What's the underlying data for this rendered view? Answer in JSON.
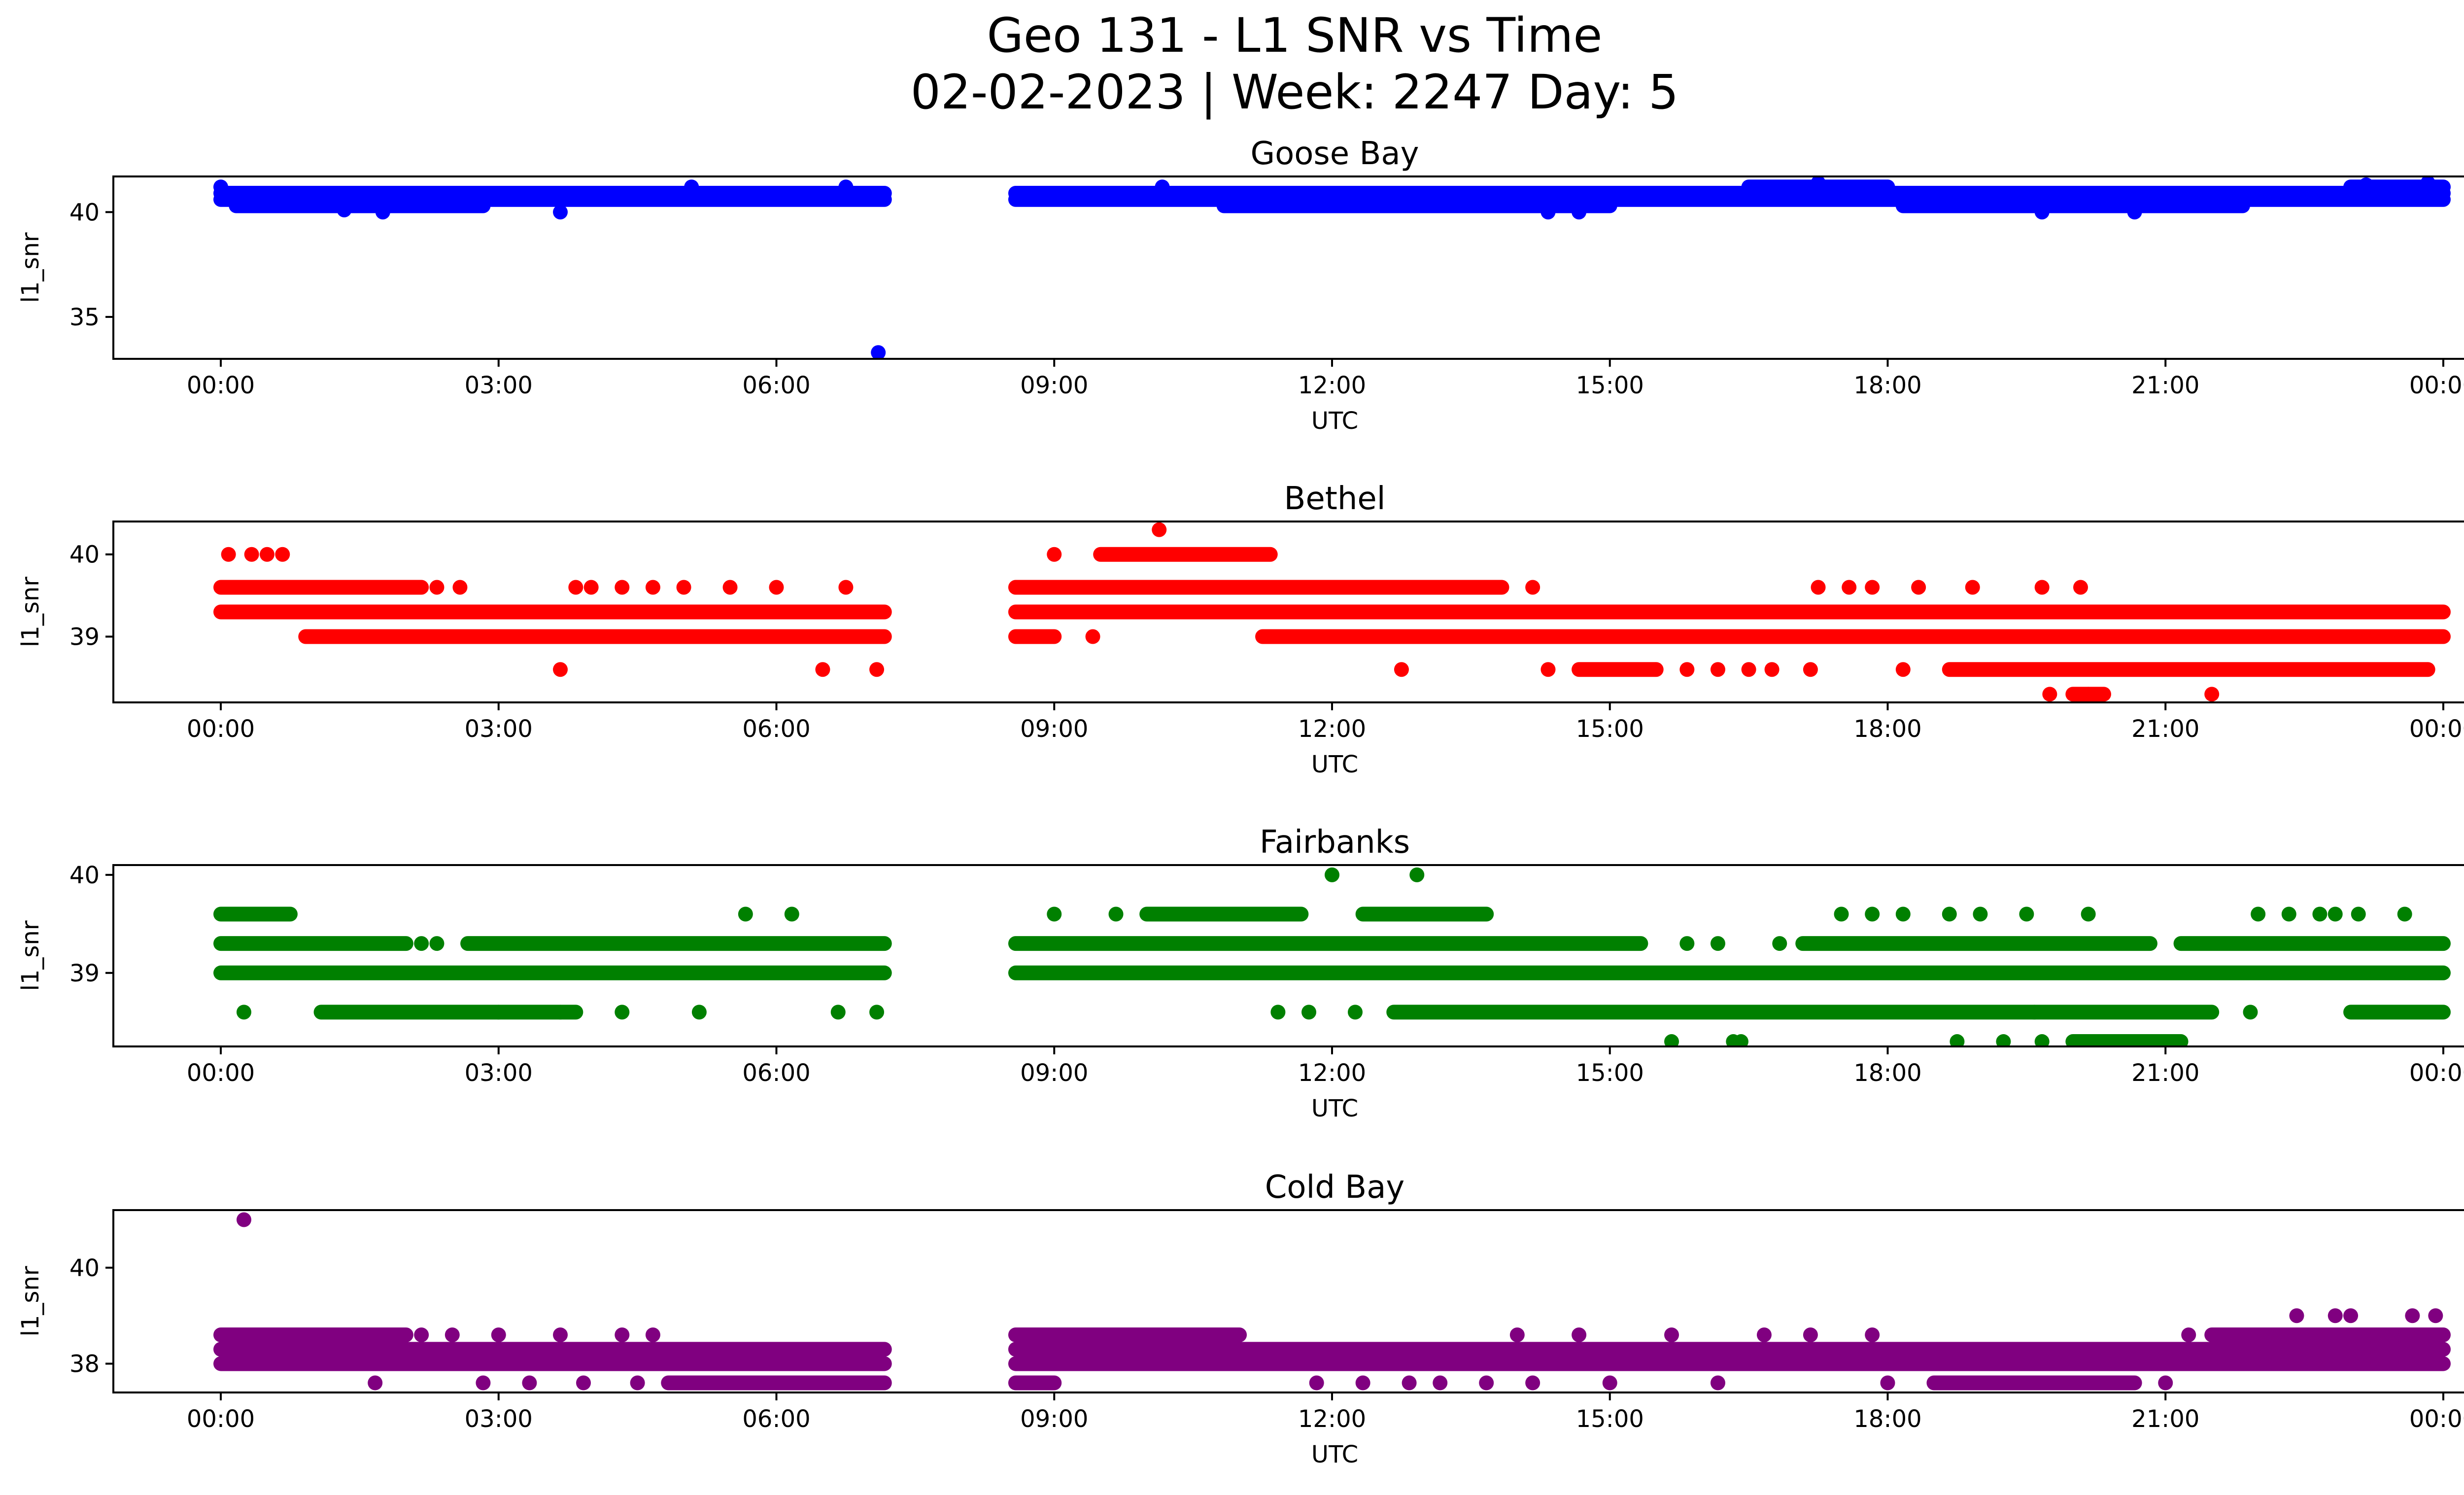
{
  "figure": {
    "title_line1": "Geo 131 - L1 SNR vs Time",
    "title_line2": "02-02-2023 | Week: 2247 Day: 5"
  },
  "chart_data": [
    {
      "type": "scatter",
      "title": "Goose Bay",
      "xlabel": "UTC",
      "ylabel": "l1_snr",
      "color": "#0000ff",
      "xlim": [
        "00:00",
        "24:00"
      ],
      "ylim": [
        33,
        41.7
      ],
      "x_ticks": [
        "00:00",
        "03:00",
        "06:00",
        "09:00",
        "12:00",
        "15:00",
        "18:00",
        "21:00",
        "00:00"
      ],
      "y_ticks": [
        35,
        40
      ],
      "data_gap_utc": [
        "07:10",
        "08:35"
      ],
      "bands": [
        {
          "y": 40.6,
          "x_ranges": [
            [
              "00:00",
              "07:10"
            ],
            [
              "08:35",
              "24:00"
            ]
          ]
        },
        {
          "y": 40.9,
          "x_ranges": [
            [
              "00:00",
              "07:10"
            ],
            [
              "08:35",
              "24:00"
            ]
          ]
        },
        {
          "y": 40.3,
          "x_ranges": [
            [
              "00:10",
              "02:50"
            ],
            [
              "10:50",
              "15:00"
            ],
            [
              "18:10",
              "21:50"
            ]
          ]
        },
        {
          "y": 41.2,
          "x_ranges": [
            [
              "16:30",
              "18:00"
            ],
            [
              "23:00",
              "24:00"
            ]
          ]
        }
      ],
      "points": [
        {
          "x": "00:00",
          "y": 41.2
        },
        {
          "x": "01:20",
          "y": 40.1
        },
        {
          "x": "01:45",
          "y": 40.0
        },
        {
          "x": "03:40",
          "y": 40.0
        },
        {
          "x": "05:05",
          "y": 41.2
        },
        {
          "x": "06:45",
          "y": 41.2
        },
        {
          "x": "07:06",
          "y": 33.3
        },
        {
          "x": "10:10",
          "y": 41.2
        },
        {
          "x": "14:20",
          "y": 40.0
        },
        {
          "x": "14:40",
          "y": 40.0
        },
        {
          "x": "17:15",
          "y": 41.4
        },
        {
          "x": "19:40",
          "y": 40.0
        },
        {
          "x": "20:40",
          "y": 40.0
        },
        {
          "x": "23:10",
          "y": 41.3
        },
        {
          "x": "23:50",
          "y": 41.4
        }
      ]
    },
    {
      "type": "scatter",
      "title": "Bethel",
      "xlabel": "UTC",
      "ylabel": "l1_snr",
      "color": "#ff0000",
      "xlim": [
        "00:00",
        "24:00"
      ],
      "ylim": [
        38.2,
        40.4
      ],
      "x_ticks": [
        "00:00",
        "03:00",
        "06:00",
        "09:00",
        "12:00",
        "15:00",
        "18:00",
        "21:00",
        "00:00"
      ],
      "y_ticks": [
        39,
        40
      ],
      "data_gap_utc": [
        "07:10",
        "08:35"
      ],
      "bands": [
        {
          "y": 39.3,
          "x_ranges": [
            [
              "00:00",
              "07:10"
            ],
            [
              "08:35",
              "24:00"
            ]
          ]
        },
        {
          "y": 39.0,
          "x_ranges": [
            [
              "00:55",
              "07:10"
            ],
            [
              "11:15",
              "24:00"
            ]
          ]
        },
        {
          "y": 39.6,
          "x_ranges": [
            [
              "00:00",
              "02:10"
            ],
            [
              "08:35",
              "11:40"
            ],
            [
              "11:40",
              "13:50"
            ]
          ]
        },
        {
          "y": 39.0,
          "x_ranges": [
            [
              "08:35",
              "09:00"
            ]
          ]
        },
        {
          "y": 40.0,
          "x_ranges": [
            [
              "09:30",
              "11:20"
            ]
          ]
        },
        {
          "y": 38.6,
          "x_ranges": [
            [
              "14:40",
              "15:30"
            ],
            [
              "18:40",
              "23:50"
            ]
          ]
        },
        {
          "y": 38.3,
          "x_ranges": [
            [
              "20:00",
              "20:20"
            ]
          ]
        }
      ],
      "points": [
        {
          "x": "00:05",
          "y": 40.0
        },
        {
          "x": "00:20",
          "y": 40.0
        },
        {
          "x": "00:30",
          "y": 40.0
        },
        {
          "x": "00:40",
          "y": 40.0
        },
        {
          "x": "02:20",
          "y": 39.6
        },
        {
          "x": "02:35",
          "y": 39.6
        },
        {
          "x": "03:40",
          "y": 38.6
        },
        {
          "x": "03:50",
          "y": 39.6
        },
        {
          "x": "04:00",
          "y": 39.6
        },
        {
          "x": "04:20",
          "y": 39.6
        },
        {
          "x": "04:40",
          "y": 39.6
        },
        {
          "x": "05:00",
          "y": 39.6
        },
        {
          "x": "05:30",
          "y": 39.6
        },
        {
          "x": "06:00",
          "y": 39.6
        },
        {
          "x": "06:30",
          "y": 38.6
        },
        {
          "x": "06:45",
          "y": 39.6
        },
        {
          "x": "07:05",
          "y": 38.6
        },
        {
          "x": "09:00",
          "y": 40.0
        },
        {
          "x": "09:25",
          "y": 39.0
        },
        {
          "x": "10:08",
          "y": 40.3
        },
        {
          "x": "12:45",
          "y": 38.6
        },
        {
          "x": "14:10",
          "y": 39.6
        },
        {
          "x": "14:20",
          "y": 38.6
        },
        {
          "x": "15:50",
          "y": 38.6
        },
        {
          "x": "16:10",
          "y": 38.6
        },
        {
          "x": "16:30",
          "y": 38.6
        },
        {
          "x": "16:45",
          "y": 38.6
        },
        {
          "x": "17:10",
          "y": 38.6
        },
        {
          "x": "17:15",
          "y": 39.6
        },
        {
          "x": "17:35",
          "y": 39.6
        },
        {
          "x": "17:50",
          "y": 39.6
        },
        {
          "x": "18:10",
          "y": 38.6
        },
        {
          "x": "18:20",
          "y": 39.6
        },
        {
          "x": "18:55",
          "y": 39.6
        },
        {
          "x": "19:40",
          "y": 39.6
        },
        {
          "x": "19:45",
          "y": 38.3
        },
        {
          "x": "20:05",
          "y": 39.6
        },
        {
          "x": "20:10",
          "y": 38.3
        },
        {
          "x": "21:30",
          "y": 38.3
        },
        {
          "x": "21:40",
          "y": 39.3
        }
      ]
    },
    {
      "type": "scatter",
      "title": "Fairbanks",
      "xlabel": "UTC",
      "ylabel": "l1_snr",
      "color": "#008000",
      "xlim": [
        "00:00",
        "24:00"
      ],
      "ylim": [
        38.25,
        40.1
      ],
      "x_ticks": [
        "00:00",
        "03:00",
        "06:00",
        "09:00",
        "12:00",
        "15:00",
        "18:00",
        "21:00",
        "00:00"
      ],
      "y_ticks": [
        39,
        40
      ],
      "data_gap_utc": [
        "07:10",
        "08:35"
      ],
      "bands": [
        {
          "y": 39.0,
          "x_ranges": [
            [
              "00:00",
              "07:10"
            ],
            [
              "08:35",
              "24:00"
            ]
          ]
        },
        {
          "y": 39.3,
          "x_ranges": [
            [
              "00:00",
              "02:00"
            ],
            [
              "02:40",
              "07:10"
            ],
            [
              "08:35",
              "15:20"
            ],
            [
              "17:05",
              "20:50"
            ],
            [
              "21:10",
              "24:00"
            ]
          ]
        },
        {
          "y": 39.6,
          "x_ranges": [
            [
              "00:00",
              "00:45"
            ],
            [
              "10:00",
              "11:40"
            ],
            [
              "12:20",
              "13:40"
            ]
          ]
        },
        {
          "y": 38.6,
          "x_ranges": [
            [
              "01:05",
              "03:00"
            ],
            [
              "03:00",
              "03:50"
            ],
            [
              "12:40",
              "21:30"
            ],
            [
              "23:00",
              "24:00"
            ]
          ]
        },
        {
          "y": 38.3,
          "x_ranges": [
            [
              "20:00",
              "21:10"
            ]
          ]
        }
      ],
      "points": [
        {
          "x": "00:15",
          "y": 38.6
        },
        {
          "x": "02:10",
          "y": 39.3
        },
        {
          "x": "02:20",
          "y": 39.3
        },
        {
          "x": "03:40",
          "y": 38.6
        },
        {
          "x": "04:20",
          "y": 38.6
        },
        {
          "x": "05:10",
          "y": 38.6
        },
        {
          "x": "05:40",
          "y": 39.6
        },
        {
          "x": "06:10",
          "y": 39.6
        },
        {
          "x": "06:40",
          "y": 38.6
        },
        {
          "x": "07:05",
          "y": 38.6
        },
        {
          "x": "09:00",
          "y": 39.6
        },
        {
          "x": "09:40",
          "y": 39.6
        },
        {
          "x": "11:25",
          "y": 38.6
        },
        {
          "x": "11:45",
          "y": 38.6
        },
        {
          "x": "12:00",
          "y": 40.0
        },
        {
          "x": "12:15",
          "y": 38.6
        },
        {
          "x": "12:55",
          "y": 40.0
        },
        {
          "x": "15:40",
          "y": 38.3
        },
        {
          "x": "15:50",
          "y": 39.3
        },
        {
          "x": "16:10",
          "y": 39.3
        },
        {
          "x": "16:20",
          "y": 38.3
        },
        {
          "x": "16:25",
          "y": 38.3
        },
        {
          "x": "16:50",
          "y": 39.3
        },
        {
          "x": "17:30",
          "y": 39.6
        },
        {
          "x": "17:50",
          "y": 39.6
        },
        {
          "x": "18:10",
          "y": 39.6
        },
        {
          "x": "18:40",
          "y": 39.6
        },
        {
          "x": "18:45",
          "y": 38.3
        },
        {
          "x": "19:00",
          "y": 39.6
        },
        {
          "x": "19:15",
          "y": 38.3
        },
        {
          "x": "19:30",
          "y": 39.6
        },
        {
          "x": "19:35",
          "y": 38.6
        },
        {
          "x": "19:40",
          "y": 38.3
        },
        {
          "x": "20:10",
          "y": 39.6
        },
        {
          "x": "21:55",
          "y": 38.6
        },
        {
          "x": "22:00",
          "y": 39.6
        },
        {
          "x": "22:20",
          "y": 39.6
        },
        {
          "x": "22:40",
          "y": 39.6
        },
        {
          "x": "22:50",
          "y": 39.6
        },
        {
          "x": "23:05",
          "y": 39.6
        },
        {
          "x": "23:35",
          "y": 39.6
        }
      ]
    },
    {
      "type": "scatter",
      "title": "Cold Bay",
      "xlabel": "UTC",
      "ylabel": "l1_snr",
      "color": "#800080",
      "xlim": [
        "00:00",
        "24:00"
      ],
      "ylim": [
        37.4,
        41.2
      ],
      "x_ticks": [
        "00:00",
        "03:00",
        "06:00",
        "09:00",
        "12:00",
        "15:00",
        "18:00",
        "21:00",
        "00:00"
      ],
      "y_ticks": [
        38,
        40
      ],
      "data_gap_utc": [
        "07:10",
        "08:35"
      ],
      "bands": [
        {
          "y": 38.0,
          "x_ranges": [
            [
              "00:00",
              "07:10"
            ],
            [
              "08:35",
              "24:00"
            ]
          ]
        },
        {
          "y": 38.3,
          "x_ranges": [
            [
              "00:00",
              "07:10"
            ],
            [
              "08:35",
              "24:00"
            ]
          ]
        },
        {
          "y": 38.6,
          "x_ranges": [
            [
              "00:00",
              "02:00"
            ],
            [
              "08:35",
              "11:00"
            ],
            [
              "21:30",
              "24:00"
            ]
          ]
        },
        {
          "y": 37.6,
          "x_ranges": [
            [
              "04:50",
              "07:10"
            ],
            [
              "08:35",
              "09:00"
            ],
            [
              "18:30",
              "20:40"
            ]
          ]
        }
      ],
      "points": [
        {
          "x": "00:15",
          "y": 41.0
        },
        {
          "x": "01:40",
          "y": 37.6
        },
        {
          "x": "02:10",
          "y": 38.6
        },
        {
          "x": "02:30",
          "y": 38.6
        },
        {
          "x": "02:50",
          "y": 37.6
        },
        {
          "x": "03:00",
          "y": 38.6
        },
        {
          "x": "03:20",
          "y": 37.6
        },
        {
          "x": "03:40",
          "y": 38.6
        },
        {
          "x": "03:55",
          "y": 37.6
        },
        {
          "x": "04:20",
          "y": 38.6
        },
        {
          "x": "04:30",
          "y": 37.6
        },
        {
          "x": "04:40",
          "y": 38.6
        },
        {
          "x": "11:50",
          "y": 37.6
        },
        {
          "x": "12:20",
          "y": 37.6
        },
        {
          "x": "12:50",
          "y": 37.6
        },
        {
          "x": "13:10",
          "y": 37.6
        },
        {
          "x": "13:40",
          "y": 37.6
        },
        {
          "x": "14:00",
          "y": 38.6
        },
        {
          "x": "14:10",
          "y": 37.6
        },
        {
          "x": "14:40",
          "y": 38.6
        },
        {
          "x": "15:00",
          "y": 37.6
        },
        {
          "x": "15:40",
          "y": 38.6
        },
        {
          "x": "16:10",
          "y": 37.6
        },
        {
          "x": "16:40",
          "y": 38.6
        },
        {
          "x": "17:10",
          "y": 38.6
        },
        {
          "x": "17:50",
          "y": 38.6
        },
        {
          "x": "18:00",
          "y": 37.6
        },
        {
          "x": "21:00",
          "y": 37.6
        },
        {
          "x": "21:15",
          "y": 38.6
        },
        {
          "x": "22:25",
          "y": 39.0
        },
        {
          "x": "22:50",
          "y": 39.0
        },
        {
          "x": "23:00",
          "y": 39.0
        },
        {
          "x": "23:40",
          "y": 39.0
        },
        {
          "x": "23:55",
          "y": 39.0
        }
      ]
    }
  ]
}
